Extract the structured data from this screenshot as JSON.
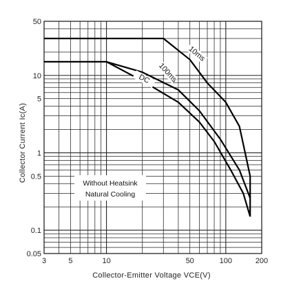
{
  "chart_data": {
    "type": "line",
    "xlabel": "Collector-Emitter Voltage VCE(V)",
    "ylabel": "Collector Current Ic(A)",
    "xscale": "log",
    "yscale": "log",
    "xlim": [
      3,
      200
    ],
    "ylim": [
      0.05,
      50
    ],
    "grid": true,
    "x_ticks": [
      {
        "value": 3,
        "label": "3"
      },
      {
        "value": 5,
        "label": "5"
      },
      {
        "value": 10,
        "label": "10"
      },
      {
        "value": 50,
        "label": "50"
      },
      {
        "value": 100,
        "label": "100"
      },
      {
        "value": 200,
        "label": "200"
      }
    ],
    "y_ticks": [
      {
        "value": 0.05,
        "label": "0.05"
      },
      {
        "value": 0.1,
        "label": "0.1"
      },
      {
        "value": 0.5,
        "label": "0.5"
      },
      {
        "value": 1,
        "label": "1"
      },
      {
        "value": 5,
        "label": "5"
      },
      {
        "value": 10,
        "label": "10"
      },
      {
        "value": 50,
        "label": "50"
      }
    ],
    "series": [
      {
        "name": "10ms",
        "points": [
          [
            3,
            30
          ],
          [
            30,
            30
          ],
          [
            50,
            16
          ],
          [
            70,
            8
          ],
          [
            100,
            4.5
          ],
          [
            130,
            2.2
          ],
          [
            160,
            0.5
          ],
          [
            160,
            0.15
          ]
        ]
      },
      {
        "name": "100ms",
        "points": [
          [
            3,
            15
          ],
          [
            10,
            15
          ],
          [
            20,
            11
          ],
          [
            40,
            6.5
          ],
          [
            60,
            3.5
          ],
          [
            90,
            1.5
          ],
          [
            130,
            0.6
          ],
          [
            160,
            0.26
          ]
        ]
      },
      {
        "name": "DC",
        "points": [
          [
            10,
            15
          ],
          [
            20,
            8.5
          ],
          [
            40,
            4.5
          ],
          [
            60,
            2.5
          ],
          [
            80,
            1.4
          ],
          [
            110,
            0.6
          ],
          [
            140,
            0.3
          ],
          [
            160,
            0.15
          ]
        ]
      }
    ],
    "annotation": [
      "Without Heatsink",
      "Natural Cooling"
    ]
  }
}
